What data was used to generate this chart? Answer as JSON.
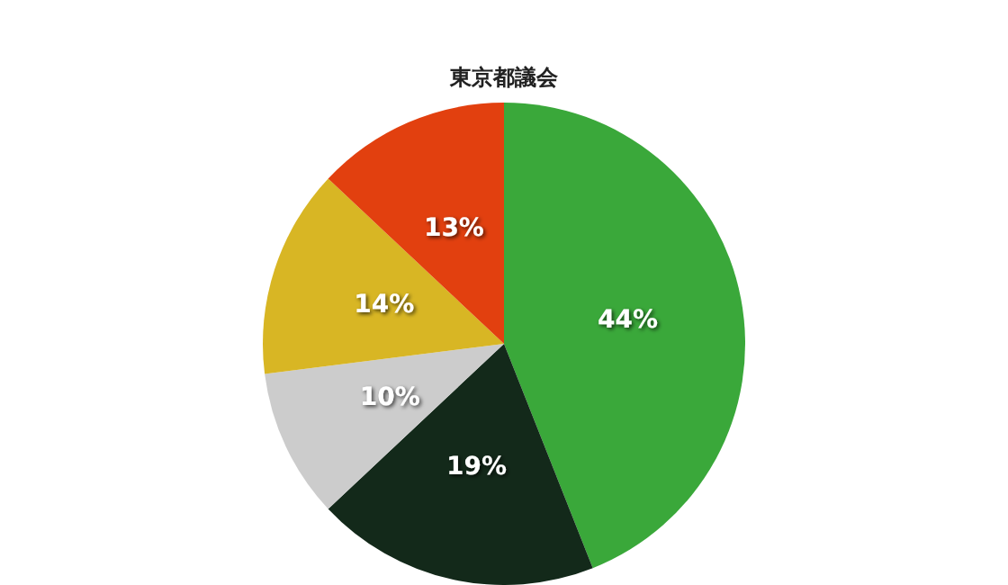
{
  "chart_data": {
    "type": "pie",
    "title": "東京都議会",
    "categories": [
      null,
      null,
      null,
      null,
      null
    ],
    "values": [
      44,
      19,
      10,
      14,
      13
    ],
    "value_labels": [
      "44%",
      "19%",
      "10%",
      "14%",
      "13%"
    ],
    "colors": [
      "#3aa83a",
      "#13291a",
      "#cccccc",
      "#d8b624",
      "#e2400f"
    ]
  }
}
